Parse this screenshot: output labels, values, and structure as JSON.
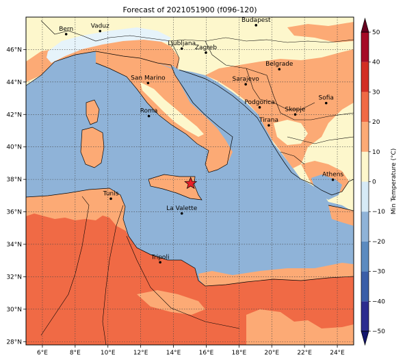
{
  "title": "Forecast of 2021051900 (f096-120)",
  "map": {
    "lon_range": [
      5,
      25
    ],
    "lat_range": [
      27.8,
      48
    ],
    "lon_ticks": [
      {
        "value": 6,
        "label": "6°E"
      },
      {
        "value": 8,
        "label": "8°E"
      },
      {
        "value": 10,
        "label": "10°E"
      },
      {
        "value": 12,
        "label": "12°E"
      },
      {
        "value": 14,
        "label": "14°E"
      },
      {
        "value": 16,
        "label": "16°E"
      },
      {
        "value": 18,
        "label": "18°E"
      },
      {
        "value": 20,
        "label": "20°E"
      },
      {
        "value": 22,
        "label": "22°E"
      },
      {
        "value": 24,
        "label": "24°E"
      }
    ],
    "lat_ticks": [
      {
        "value": 28,
        "label": "28°N"
      },
      {
        "value": 30,
        "label": "30°N"
      },
      {
        "value": 32,
        "label": "32°N"
      },
      {
        "value": 34,
        "label": "34°N"
      },
      {
        "value": 36,
        "label": "36°N"
      },
      {
        "value": 38,
        "label": "38°N"
      },
      {
        "value": 40,
        "label": "40°N"
      },
      {
        "value": 42,
        "label": "42°N"
      },
      {
        "value": 44,
        "label": "44°N"
      },
      {
        "value": 46,
        "label": "46°N"
      }
    ],
    "grid": true,
    "cities": [
      {
        "name": "Bern",
        "lon": 7.45,
        "lat": 46.95
      },
      {
        "name": "Vaduz",
        "lon": 9.52,
        "lat": 47.14
      },
      {
        "name": "Budapest",
        "lon": 19.04,
        "lat": 47.5
      },
      {
        "name": "Ljubljana",
        "lon": 14.51,
        "lat": 46.06
      },
      {
        "name": "Zagreb",
        "lon": 15.98,
        "lat": 45.81
      },
      {
        "name": "San Marino",
        "lon": 12.45,
        "lat": 43.94
      },
      {
        "name": "Belgrade",
        "lon": 20.46,
        "lat": 44.79
      },
      {
        "name": "Sarajevo",
        "lon": 18.41,
        "lat": 43.86
      },
      {
        "name": "Roma",
        "lon": 12.5,
        "lat": 41.9
      },
      {
        "name": "Podgorica",
        "lon": 19.26,
        "lat": 42.44
      },
      {
        "name": "Sofia",
        "lon": 23.32,
        "lat": 42.7
      },
      {
        "name": "Skopje",
        "lon": 21.43,
        "lat": 42.0
      },
      {
        "name": "Tirana",
        "lon": 19.82,
        "lat": 41.33
      },
      {
        "name": "Athens",
        "lon": 23.73,
        "lat": 37.98
      },
      {
        "name": "Tunis",
        "lon": 10.18,
        "lat": 36.81
      },
      {
        "name": "La Valette",
        "lon": 14.51,
        "lat": 35.9
      },
      {
        "name": "Tripoli",
        "lon": 13.19,
        "lat": 32.89
      }
    ],
    "marker": {
      "type": "star",
      "lon": 15.05,
      "lat": 37.75,
      "color": "#e8202a"
    }
  },
  "colorbar": {
    "label": "Min Temperature (°C)",
    "ticks": [
      {
        "value": -50,
        "label": "−50"
      },
      {
        "value": -40,
        "label": "−40"
      },
      {
        "value": -30,
        "label": "−30"
      },
      {
        "value": -20,
        "label": "−20"
      },
      {
        "value": -10,
        "label": "−10"
      },
      {
        "value": 0,
        "label": "0"
      },
      {
        "value": 10,
        "label": "10"
      },
      {
        "value": 20,
        "label": "20"
      },
      {
        "value": 30,
        "label": "30"
      },
      {
        "value": 40,
        "label": "40"
      },
      {
        "value": 50,
        "label": "50"
      }
    ],
    "levels": [
      {
        "min": -50,
        "max": -40,
        "color": "#2b2c8f"
      },
      {
        "min": -40,
        "max": -30,
        "color": "#3a5ea8"
      },
      {
        "min": -30,
        "max": -20,
        "color": "#5b8bc0"
      },
      {
        "min": -20,
        "max": -10,
        "color": "#8fb3d8"
      },
      {
        "min": -10,
        "max": 0,
        "color": "#d6eaf6"
      },
      {
        "min": 0,
        "max": 10,
        "color": "#fdf7cc"
      },
      {
        "min": 10,
        "max": 20,
        "color": "#fcaa75"
      },
      {
        "min": 20,
        "max": 30,
        "color": "#f06a45"
      },
      {
        "min": 30,
        "max": 40,
        "color": "#d22e24"
      },
      {
        "min": 40,
        "max": 50,
        "color": "#a50c26"
      }
    ],
    "under_color": "#14166e",
    "over_color": "#67001f"
  }
}
